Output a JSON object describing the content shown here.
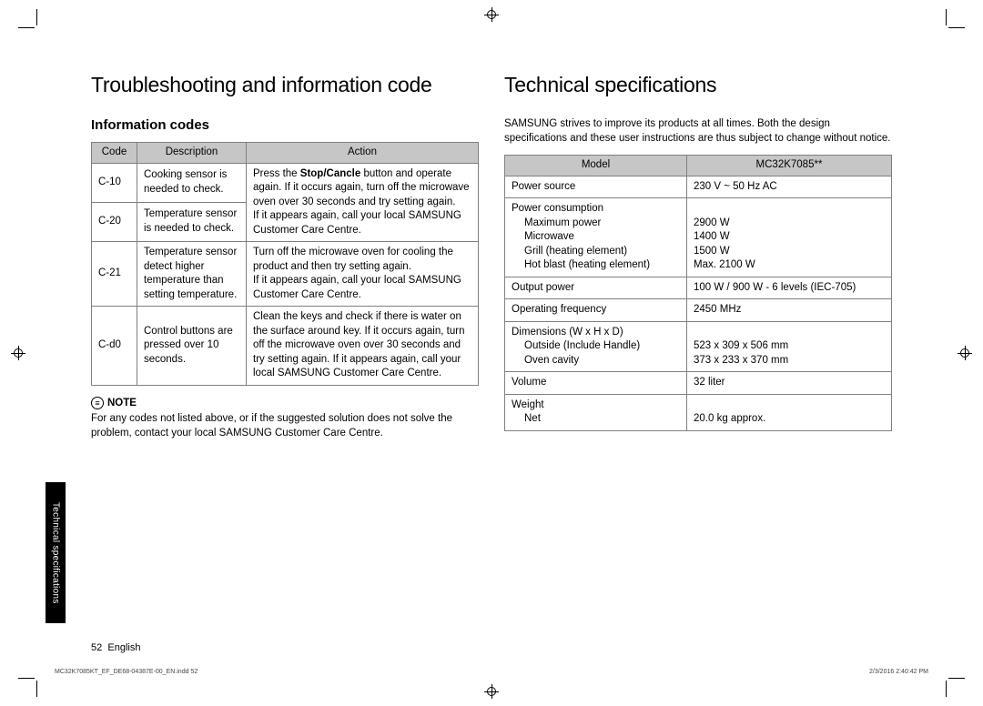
{
  "left": {
    "heading": "Troubleshooting and information code",
    "subheading": "Information codes",
    "table": {
      "headers": [
        "Code",
        "Description",
        "Action"
      ],
      "rows": [
        {
          "code": "C-10",
          "desc": "Cooking sensor is needed to check.",
          "action": null
        },
        {
          "code": "C-20",
          "desc": "Temperature sensor is needed to check.",
          "action": null
        },
        {
          "code": "C-21",
          "desc": "Temperature sensor detect higher temperature than setting temperature.",
          "action": "Turn off the microwave oven for cooling the product and then try setting again.\nIf it appears again, call your local SAMSUNG Customer Care Centre."
        },
        {
          "code": "C-d0",
          "desc": "Control buttons are pressed over 10 seconds.",
          "action": "Clean the keys and check if there is water on the surface around key. If it occurs again, turn off the microwave oven over 30 seconds and try setting again. If it appears again, call your local SAMSUNG Customer Care Centre."
        }
      ],
      "merged_action_prefix": "Press the ",
      "merged_action_bold": "Stop/Cancle",
      "merged_action_rest": " button and operate again. If it occurs again, turn off the microwave oven over 30 seconds and try setting again.\nIf it appears again, call your local SAMSUNG Customer Care Centre."
    },
    "note_label": "NOTE",
    "note_text": "For any codes not listed above, or if the suggested solution does not solve the problem, contact your local SAMSUNG Customer Care Centre."
  },
  "right": {
    "heading": "Technical specifications",
    "intro": "SAMSUNG strives to improve its products at all times. Both the design specifications and these user instructions are thus subject to change without notice.",
    "table": {
      "header_left": "Model",
      "header_right": "MC32K7085**",
      "rows": [
        {
          "label": "Power source",
          "value": "230 V ~ 50 Hz AC",
          "indents": []
        },
        {
          "label": "Power consumption",
          "value": "",
          "indents": [
            {
              "l": "Maximum power",
              "v": "2900 W"
            },
            {
              "l": "Microwave",
              "v": "1400 W"
            },
            {
              "l": "Grill (heating element)",
              "v": "1500 W"
            },
            {
              "l": "Hot blast (heating element)",
              "v": "Max. 2100 W"
            }
          ]
        },
        {
          "label": "Output power",
          "value": "100 W / 900 W - 6 levels (IEC-705)",
          "indents": []
        },
        {
          "label": "Operating frequency",
          "value": "2450 MHz",
          "indents": []
        },
        {
          "label": "Dimensions (W x H x D)",
          "value": "",
          "indents": [
            {
              "l": "Outside (Include Handle)",
              "v": "523 x 309 x 506 mm"
            },
            {
              "l": "Oven cavity",
              "v": "373 x 233 x 370 mm"
            }
          ]
        },
        {
          "label": "Volume",
          "value": "32 liter",
          "indents": []
        },
        {
          "label": "Weight",
          "value": "",
          "indents": [
            {
              "l": "Net",
              "v": "20.0 kg approx."
            }
          ]
        }
      ]
    }
  },
  "side_tab": "Technical specifications",
  "page_number_prefix": "52",
  "page_number_lang": "English",
  "footer_file": "MC32K7085KT_EF_DE68-04387E-00_EN.indd   52",
  "footer_date": "2/3/2016   2:40:42 PM"
}
